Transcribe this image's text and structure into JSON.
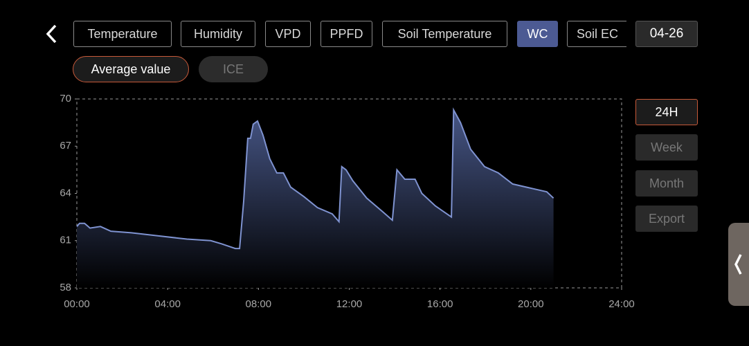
{
  "tabs": [
    "Temperature",
    "Humidity",
    "VPD",
    "PPFD",
    "Soil Temperature",
    "WC",
    "Soil EC"
  ],
  "date": "04-26",
  "modes": [
    "Average value",
    "ICE"
  ],
  "ranges": [
    "24H",
    "Week",
    "Month",
    "Export"
  ],
  "chart_data": {
    "type": "area",
    "color": "#7f93d1",
    "x": [
      0,
      0.12,
      0.34,
      0.58,
      1.04,
      1.5,
      2.4,
      3.6,
      4.85,
      5.9,
      6.37,
      6.98,
      7.17,
      7.35,
      7.53,
      7.65,
      7.77,
      7.96,
      8.2,
      8.5,
      8.81,
      9.1,
      9.42,
      10.0,
      10.6,
      11.25,
      11.55,
      11.67,
      11.86,
      12.16,
      12.77,
      13.5,
      13.9,
      14.1,
      14.45,
      14.9,
      15.2,
      15.8,
      16.5,
      16.6,
      16.9,
      17.35,
      17.96,
      18.57,
      19.2,
      20.1,
      20.7,
      21.0
    ],
    "values": [
      61.9,
      62.1,
      62.1,
      61.8,
      61.9,
      61.6,
      61.5,
      61.3,
      61.1,
      61.0,
      60.8,
      60.5,
      60.5,
      63.5,
      67.5,
      67.5,
      68.4,
      68.6,
      67.7,
      66.2,
      65.3,
      65.3,
      64.4,
      63.8,
      63.1,
      62.7,
      62.2,
      65.7,
      65.5,
      64.8,
      63.7,
      62.8,
      62.3,
      65.5,
      64.9,
      64.9,
      64.0,
      63.2,
      62.5,
      69.3,
      68.5,
      66.8,
      65.7,
      65.3,
      64.6,
      64.3,
      64.1,
      63.7
    ],
    "xlim": [
      0,
      24
    ],
    "xticks": [
      {
        "value": 0,
        "label": "00:00"
      },
      {
        "value": 4,
        "label": "04:00"
      },
      {
        "value": 8,
        "label": "08:00"
      },
      {
        "value": 12,
        "label": "12:00"
      },
      {
        "value": 16,
        "label": "16:00"
      },
      {
        "value": 20,
        "label": "20:00"
      },
      {
        "value": 24,
        "label": "24:00"
      }
    ],
    "ylim": [
      58,
      70
    ],
    "yticks": [
      58,
      61,
      64,
      67,
      70
    ]
  }
}
